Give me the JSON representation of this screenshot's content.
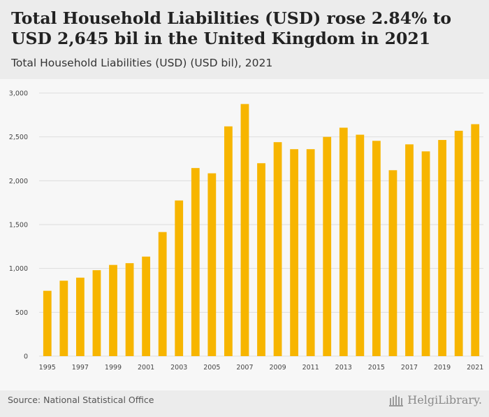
{
  "header": {
    "title": "Total Household Liabilities (USD) rose 2.84% to USD 2,645 bil in the United Kingdom in 2021",
    "subtitle": "Total Household Liabilities (USD) (USD bil), 2021"
  },
  "footer": {
    "source": "Source: National Statistical Office",
    "brand": "HelgiLibrary."
  },
  "colors": {
    "bar": "#f7b500",
    "grid": "#dddddd",
    "plot_background": "#f7f7f7",
    "header_background": "#ececec"
  },
  "icons": [
    "library-logo-icon"
  ],
  "chart_data": {
    "type": "bar",
    "title": "Total Household Liabilities (USD) (USD bil), 2021",
    "xlabel": "",
    "ylabel": "",
    "ylim": [
      0,
      3000
    ],
    "yticks": [
      0,
      500,
      1000,
      1500,
      2000,
      2500,
      3000
    ],
    "ytick_labels": [
      "0",
      "500",
      "1,000",
      "1,500",
      "2,000",
      "2,500",
      "3,000"
    ],
    "grid": true,
    "categories": [
      "1995",
      "1996",
      "1997",
      "1998",
      "1999",
      "2000",
      "2001",
      "2002",
      "2003",
      "2004",
      "2005",
      "2006",
      "2007",
      "2008",
      "2009",
      "2010",
      "2011",
      "2012",
      "2013",
      "2014",
      "2015",
      "2016",
      "2017",
      "2018",
      "2019",
      "2020",
      "2021"
    ],
    "xtick_labels": [
      "1995",
      "",
      "1997",
      "",
      "1999",
      "",
      "2001",
      "",
      "2003",
      "",
      "2005",
      "",
      "2007",
      "",
      "2009",
      "",
      "2011",
      "",
      "2013",
      "",
      "2015",
      "",
      "2017",
      "",
      "2019",
      "",
      "2021"
    ],
    "series": [
      {
        "name": "Total Household Liabilities (USD)",
        "values": [
          745,
          860,
          895,
          980,
          1040,
          1060,
          1135,
          1415,
          1775,
          2145,
          2085,
          2620,
          2875,
          2200,
          2440,
          2360,
          2360,
          2500,
          2605,
          2525,
          2455,
          2120,
          2415,
          2335,
          2465,
          2570,
          2645
        ]
      }
    ]
  }
}
